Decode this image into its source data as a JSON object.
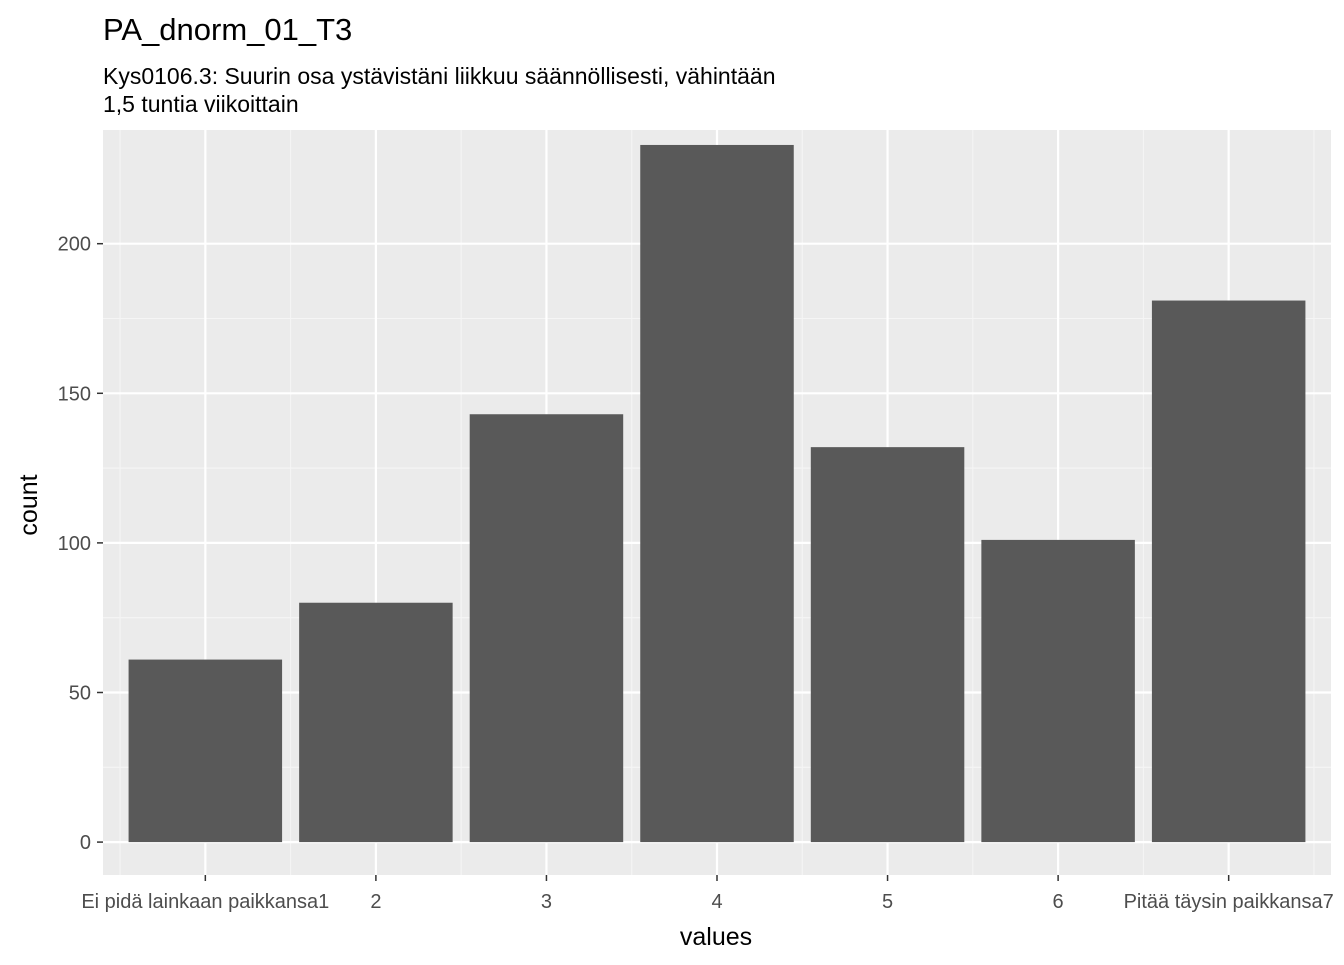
{
  "chart_data": {
    "type": "bar",
    "title": "PA_dnorm_01_T3",
    "subtitle_lines": [
      "Kys0106.3: Suurin osa ystävistäni liikkuu säännöllisesti, vähintään",
      "1,5 tuntia viikoittain"
    ],
    "xlabel": "values",
    "ylabel": "count",
    "categories": [
      "Ei pidä lainkaan paikkansa1",
      "2",
      "3",
      "4",
      "5",
      "6",
      "Pitää täysin paikkansa7"
    ],
    "values": [
      61,
      80,
      143,
      233,
      132,
      101,
      181
    ],
    "ylim": [
      -11,
      238
    ],
    "yticks": [
      0,
      50,
      100,
      150,
      200
    ],
    "grid": true,
    "legend": "none",
    "colors": {
      "bar": "#595959",
      "panel": "#ebebeb",
      "grid_major": "#ffffff",
      "grid_minor": "#f5f5f5",
      "tick": "#333333"
    }
  }
}
